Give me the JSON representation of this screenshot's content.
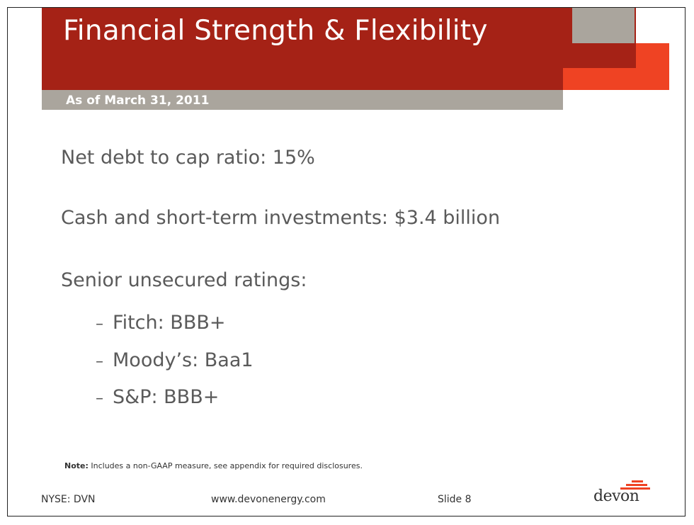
{
  "slide": {
    "title": "Financial Strength & Flexibility",
    "subtitle": "As of March 31, 2011",
    "bullets": [
      "Net debt to cap ratio: 15%",
      "Cash and short-term investments: $3.4 billion",
      "Senior unsecured ratings:"
    ],
    "ratings": [
      {
        "dash": "–",
        "text": "Fitch: BBB+"
      },
      {
        "dash": "–",
        "text": "Moody’s: Baa1"
      },
      {
        "dash": "–",
        "text": "S&P: BBB+"
      }
    ],
    "note_label": "Note:",
    "note_text": " Includes a non-GAAP measure, see appendix for required disclosures.",
    "footer": {
      "ticker": "NYSE: DVN",
      "website": "www.devonenergy.com",
      "slide_number": "Slide 8"
    },
    "logo_text": "devon"
  },
  "colors": {
    "brand_red": "#a52216",
    "brand_orange": "#ef4323",
    "brand_gray": "#aaa59d",
    "body_text": "#5a5a5a"
  }
}
